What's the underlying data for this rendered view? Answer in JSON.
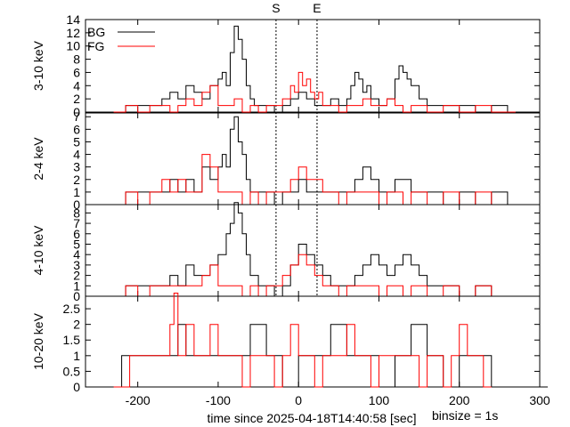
{
  "chart_data": {
    "type": "line",
    "xlabel": "time since 2025-04-18T14:40:58 [sec]",
    "binsize_label": "binsize = 1s",
    "xlim": [
      -265,
      300
    ],
    "xticks": [
      -200,
      -100,
      0,
      100,
      200,
      300
    ],
    "markers": [
      {
        "label": "S",
        "x": -28
      },
      {
        "label": "E",
        "x": 23
      }
    ],
    "legend": [
      {
        "name": "BG",
        "color": "#000000"
      },
      {
        "name": "FG",
        "color": "#ff0000"
      }
    ],
    "panels": [
      {
        "ylabel": "3-10 keV",
        "ylim": [
          0,
          14
        ],
        "yticks": [
          0,
          2,
          4,
          6,
          8,
          10,
          12,
          14
        ],
        "show_legend": true,
        "bg": {
          "x": [
            -230,
            -215,
            -200,
            -185,
            -170,
            -160,
            -150,
            -140,
            -130,
            -120,
            -110,
            -100,
            -95,
            -90,
            -85,
            -80,
            -75,
            -70,
            -65,
            -60,
            -55,
            -50,
            -40,
            -30,
            -20,
            -10,
            0,
            10,
            20,
            30,
            40,
            50,
            60,
            65,
            70,
            75,
            80,
            85,
            90,
            100,
            110,
            120,
            125,
            130,
            135,
            140,
            150,
            160,
            180,
            200,
            220,
            240,
            260
          ],
          "y": [
            0,
            1,
            1,
            1,
            2,
            3,
            2,
            4,
            3,
            2,
            4,
            5,
            6,
            4,
            9,
            13,
            11,
            8,
            4,
            2,
            1,
            1,
            1,
            0,
            1,
            2,
            3,
            2,
            1,
            1,
            2,
            1,
            2,
            4,
            6,
            5,
            3,
            4,
            2,
            1,
            2,
            5,
            7,
            6,
            5,
            4,
            2,
            1,
            1,
            1,
            0,
            1,
            0
          ]
        },
        "fg": {
          "x": [
            -230,
            -215,
            -200,
            -185,
            -170,
            -160,
            -150,
            -140,
            -130,
            -120,
            -110,
            -100,
            -90,
            -80,
            -70,
            -60,
            -50,
            -40,
            -30,
            -20,
            -10,
            -5,
            0,
            5,
            10,
            15,
            20,
            25,
            30,
            40,
            50,
            60,
            70,
            80,
            90,
            100,
            110,
            120,
            130,
            140,
            150,
            160,
            180,
            200,
            220,
            240,
            260
          ],
          "y": [
            0,
            1,
            0,
            1,
            1,
            0,
            1,
            2,
            1,
            3,
            4,
            1,
            1,
            2,
            0,
            1,
            0,
            1,
            1,
            2,
            4,
            3,
            6,
            4,
            5,
            3,
            2,
            3,
            1,
            1,
            0,
            1,
            1,
            2,
            1,
            1,
            2,
            1,
            0,
            1,
            1,
            0,
            1,
            0,
            1,
            0,
            0
          ]
        }
      },
      {
        "ylabel": "2-4 keV",
        "ylim": [
          0,
          7.3
        ],
        "yticks": [
          0,
          1,
          2,
          3,
          4,
          5,
          6,
          7
        ],
        "show_legend": false,
        "bg": {
          "x": [
            -230,
            -215,
            -200,
            -185,
            -170,
            -160,
            -150,
            -140,
            -130,
            -120,
            -110,
            -100,
            -95,
            -90,
            -85,
            -80,
            -75,
            -70,
            -65,
            -60,
            -50,
            -40,
            -30,
            -20,
            -10,
            0,
            10,
            20,
            30,
            40,
            50,
            60,
            70,
            80,
            90,
            100,
            110,
            120,
            130,
            140,
            150,
            160,
            180,
            200,
            220,
            240,
            260
          ],
          "y": [
            0,
            1,
            1,
            1,
            1,
            2,
            1,
            2,
            1,
            3,
            2,
            3,
            4,
            3,
            6,
            7,
            5,
            4,
            2,
            1,
            1,
            1,
            0,
            1,
            1,
            2,
            1,
            1,
            1,
            1,
            1,
            1,
            2,
            3,
            2,
            1,
            1,
            2,
            2,
            1,
            1,
            1,
            0,
            1,
            0,
            1,
            0
          ]
        },
        "fg": {
          "x": [
            -230,
            -215,
            -200,
            -185,
            -170,
            -160,
            -150,
            -140,
            -130,
            -120,
            -110,
            -100,
            -90,
            -80,
            -70,
            -60,
            -50,
            -40,
            -30,
            -20,
            -10,
            0,
            10,
            20,
            30,
            40,
            50,
            60,
            70,
            80,
            90,
            100,
            110,
            120,
            130,
            140,
            150,
            160,
            180,
            200,
            220,
            240,
            260
          ],
          "y": [
            0,
            1,
            0,
            1,
            2,
            1,
            2,
            1,
            1,
            4,
            3,
            1,
            1,
            1,
            0,
            1,
            0,
            1,
            1,
            1,
            2,
            3,
            2,
            2,
            1,
            1,
            0,
            1,
            1,
            1,
            1,
            0,
            1,
            1,
            0,
            1,
            1,
            0,
            1,
            0,
            1,
            0,
            0
          ]
        }
      },
      {
        "ylabel": "4-10 keV",
        "ylim": [
          0,
          8.8
        ],
        "yticks": [
          0,
          1,
          2,
          3,
          4,
          5,
          6,
          7,
          8
        ],
        "show_legend": false,
        "bg": {
          "x": [
            -230,
            -215,
            -200,
            -185,
            -170,
            -160,
            -150,
            -140,
            -130,
            -120,
            -110,
            -100,
            -95,
            -90,
            -85,
            -80,
            -75,
            -70,
            -65,
            -60,
            -50,
            -40,
            -30,
            -20,
            -10,
            0,
            10,
            20,
            30,
            40,
            50,
            60,
            70,
            80,
            90,
            100,
            110,
            120,
            130,
            140,
            150,
            160,
            180,
            200,
            220,
            240,
            260
          ],
          "y": [
            0,
            1,
            1,
            1,
            1,
            2,
            1,
            3,
            2,
            2,
            3,
            4,
            4,
            6,
            7,
            9,
            8,
            6,
            4,
            2,
            1,
            1,
            0,
            1,
            3,
            5,
            4,
            3,
            2,
            1,
            1,
            1,
            2,
            3,
            4,
            3,
            2,
            3,
            4,
            3,
            2,
            1,
            1,
            0,
            1,
            0,
            0
          ]
        },
        "fg": {
          "x": [
            -230,
            -215,
            -200,
            -185,
            -170,
            -160,
            -150,
            -140,
            -130,
            -120,
            -110,
            -100,
            -90,
            -80,
            -70,
            -60,
            -50,
            -40,
            -30,
            -20,
            -10,
            0,
            10,
            20,
            30,
            40,
            50,
            60,
            70,
            80,
            90,
            100,
            110,
            120,
            130,
            140,
            150,
            160,
            180,
            200,
            220,
            240,
            260
          ],
          "y": [
            0,
            1,
            0,
            1,
            1,
            1,
            1,
            1,
            1,
            2,
            3,
            1,
            1,
            1,
            0,
            1,
            0,
            1,
            1,
            2,
            3,
            4,
            3,
            2,
            1,
            1,
            0,
            1,
            1,
            1,
            1,
            0,
            1,
            1,
            0,
            1,
            1,
            0,
            1,
            0,
            1,
            0,
            0
          ]
        }
      },
      {
        "ylabel": "10-20 keV",
        "ylim": [
          0,
          2.9
        ],
        "yticks": [
          0,
          0.5,
          1,
          1.5,
          2,
          2.5
        ],
        "show_legend": false,
        "bg": {
          "x": [
            -260,
            -240,
            -220,
            -200,
            -180,
            -160,
            -150,
            -140,
            -120,
            -100,
            -80,
            -60,
            -40,
            -20,
            0,
            20,
            40,
            60,
            80,
            100,
            120,
            140,
            160,
            180,
            200,
            220,
            240,
            260,
            280,
            300
          ],
          "y": [
            0,
            0,
            1,
            1,
            1,
            1,
            2,
            1,
            1,
            1,
            1,
            2,
            1,
            0,
            1,
            1,
            2,
            1,
            1,
            0,
            1,
            2,
            1,
            0,
            1,
            1,
            0,
            0,
            0,
            0
          ]
        },
        "fg": {
          "x": [
            -230,
            -210,
            -190,
            -170,
            -160,
            -155,
            -150,
            -140,
            -130,
            -120,
            -110,
            -100,
            -90,
            -80,
            -70,
            -60,
            -50,
            -40,
            -30,
            -20,
            -10,
            0,
            10,
            20,
            30,
            40,
            50,
            60,
            70,
            80,
            90,
            100,
            110,
            120,
            130,
            140,
            150,
            160,
            170,
            180,
            190,
            200,
            210,
            220,
            230
          ],
          "y": [
            0,
            1,
            1,
            1,
            2,
            3,
            1,
            2,
            1,
            1,
            2,
            1,
            1,
            1,
            0,
            1,
            1,
            1,
            0,
            1,
            2,
            1,
            1,
            0,
            1,
            1,
            1,
            2,
            1,
            1,
            0,
            1,
            1,
            1,
            1,
            1,
            0,
            1,
            1,
            0,
            1,
            2,
            1,
            1,
            0
          ]
        }
      }
    ]
  }
}
